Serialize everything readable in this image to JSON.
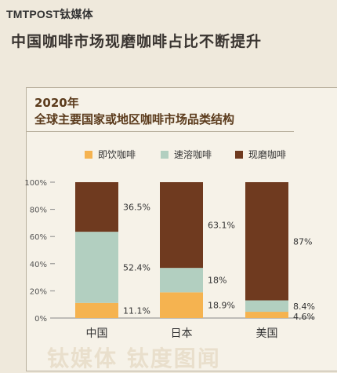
{
  "brand": {
    "logo_text": "TMTPOST钛媒体"
  },
  "headline": "中国咖啡市场现磨咖啡占比不断提升",
  "subtitle": {
    "year": "2020年",
    "text": "全球主要国家或地区咖啡市场品类结构"
  },
  "watermark": "钛媒体  钛度图闻",
  "chart_data": {
    "type": "bar",
    "stacked": true,
    "categories": [
      "中国",
      "日本",
      "美国"
    ],
    "series": [
      {
        "name": "即饮咖啡",
        "color": "#f5b350",
        "values": [
          11.1,
          18.9,
          4.6
        ]
      },
      {
        "name": "速溶咖啡",
        "color": "#b2cfc0",
        "values": [
          52.4,
          18,
          8.4
        ]
      },
      {
        "name": "现磨咖啡",
        "color": "#6f3a1f",
        "values": [
          36.5,
          63.1,
          87
        ]
      }
    ],
    "data_labels": [
      [
        "11.1%",
        "52.4%",
        "36.5%"
      ],
      [
        "18.9%",
        "18%",
        "63.1%"
      ],
      [
        "4.6%",
        "8.4%",
        "87%"
      ]
    ],
    "yticks": [
      "0%",
      "20%",
      "40%",
      "60%",
      "80%",
      "100%"
    ],
    "ylim": [
      0,
      100
    ],
    "legend_position": "top",
    "grid": false
  }
}
